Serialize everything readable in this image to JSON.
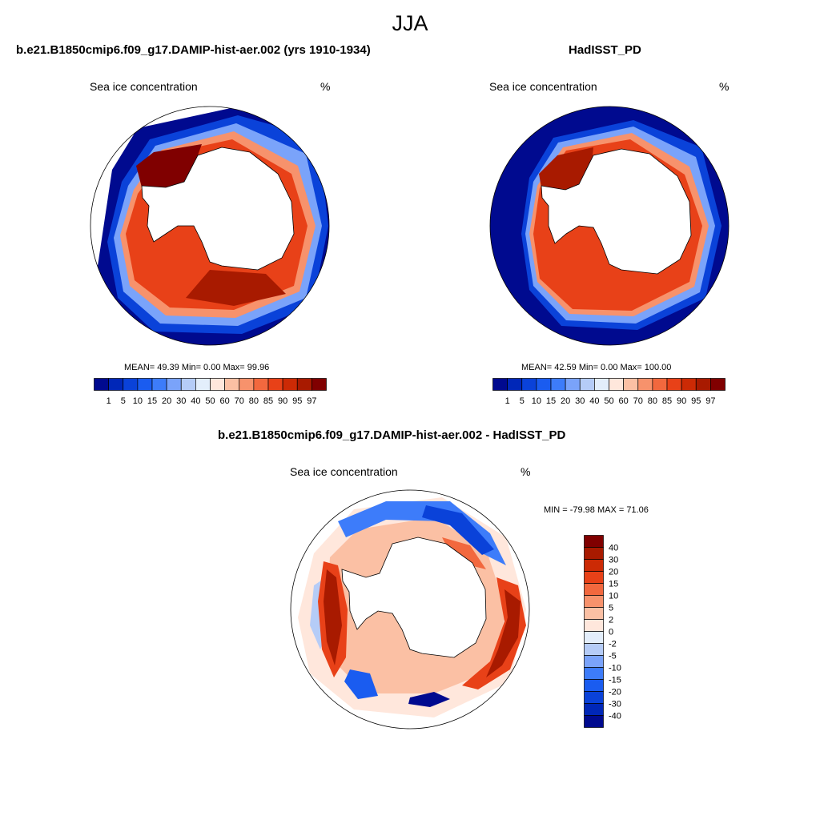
{
  "main_title": "JJA",
  "panels": [
    {
      "title": "b.e21.B1850cmip6.f09_g17.DAMIP-hist-aer.002 (yrs 1910-1934)",
      "variable": "Sea ice concentration",
      "units": "%",
      "stats": "MEAN=  49.39  Min=   0.00  Max=  99.96"
    },
    {
      "title": "HadISST_PD",
      "variable": "Sea ice concentration",
      "units": "%",
      "stats": "MEAN=  42.59  Min=   0.00  Max= 100.00"
    },
    {
      "title": "b.e21.B1850cmip6.f09_g17.DAMIP-hist-aer.002 - HadISST_PD",
      "variable": "Sea ice concentration",
      "units": "%",
      "stats": "MIN = -79.98 MAX =  71.06"
    }
  ],
  "chart_data": [
    {
      "type": "heatmap",
      "title": "b.e21.B1850cmip6.f09_g17.DAMIP-hist-aer.002 (yrs 1910-1934)",
      "variable": "Sea ice concentration",
      "units": "%",
      "projection": "south-polar-stereographic",
      "mean": 49.39,
      "min": 0.0,
      "max": 99.96,
      "colorbar_orientation": "horizontal",
      "levels": [
        "1",
        "5",
        "10",
        "15",
        "20",
        "30",
        "40",
        "50",
        "60",
        "70",
        "80",
        "85",
        "90",
        "95",
        "97"
      ],
      "colors": [
        "#000a8f",
        "#0027b8",
        "#0a42d9",
        "#1a5cf0",
        "#3d7cfa",
        "#7aa3fa",
        "#b5ccf7",
        "#e3eefb",
        "#ffe7dc",
        "#fbc0a4",
        "#f7926c",
        "#f2683e",
        "#e84118",
        "#cc2a05",
        "#a81a00",
        "#800000"
      ]
    },
    {
      "type": "heatmap",
      "title": "HadISST_PD",
      "variable": "Sea ice concentration",
      "units": "%",
      "projection": "south-polar-stereographic",
      "mean": 42.59,
      "min": 0.0,
      "max": 100.0,
      "colorbar_orientation": "horizontal",
      "levels": [
        "1",
        "5",
        "10",
        "15",
        "20",
        "30",
        "40",
        "50",
        "60",
        "70",
        "80",
        "85",
        "90",
        "95",
        "97"
      ],
      "colors": [
        "#000a8f",
        "#0027b8",
        "#0a42d9",
        "#1a5cf0",
        "#3d7cfa",
        "#7aa3fa",
        "#b5ccf7",
        "#e3eefb",
        "#ffe7dc",
        "#fbc0a4",
        "#f7926c",
        "#f2683e",
        "#e84118",
        "#cc2a05",
        "#a81a00",
        "#800000"
      ]
    },
    {
      "type": "heatmap",
      "title": "b.e21.B1850cmip6.f09_g17.DAMIP-hist-aer.002 - HadISST_PD",
      "variable": "Sea ice concentration",
      "units": "%",
      "projection": "south-polar-stereographic",
      "min": -79.98,
      "max": 71.06,
      "colorbar_orientation": "vertical",
      "levels": [
        "40",
        "30",
        "20",
        "15",
        "10",
        "5",
        "2",
        "0",
        "-2",
        "-5",
        "-10",
        "-15",
        "-20",
        "-30",
        "-40"
      ],
      "colors": [
        "#800000",
        "#a81a00",
        "#cc2a05",
        "#e84118",
        "#f2683e",
        "#f7926c",
        "#fbc0a4",
        "#ffe7dc",
        "#e3eefb",
        "#b5ccf7",
        "#7aa3fa",
        "#3d7cfa",
        "#1a5cf0",
        "#0a42d9",
        "#0027b8",
        "#000a8f"
      ]
    }
  ]
}
